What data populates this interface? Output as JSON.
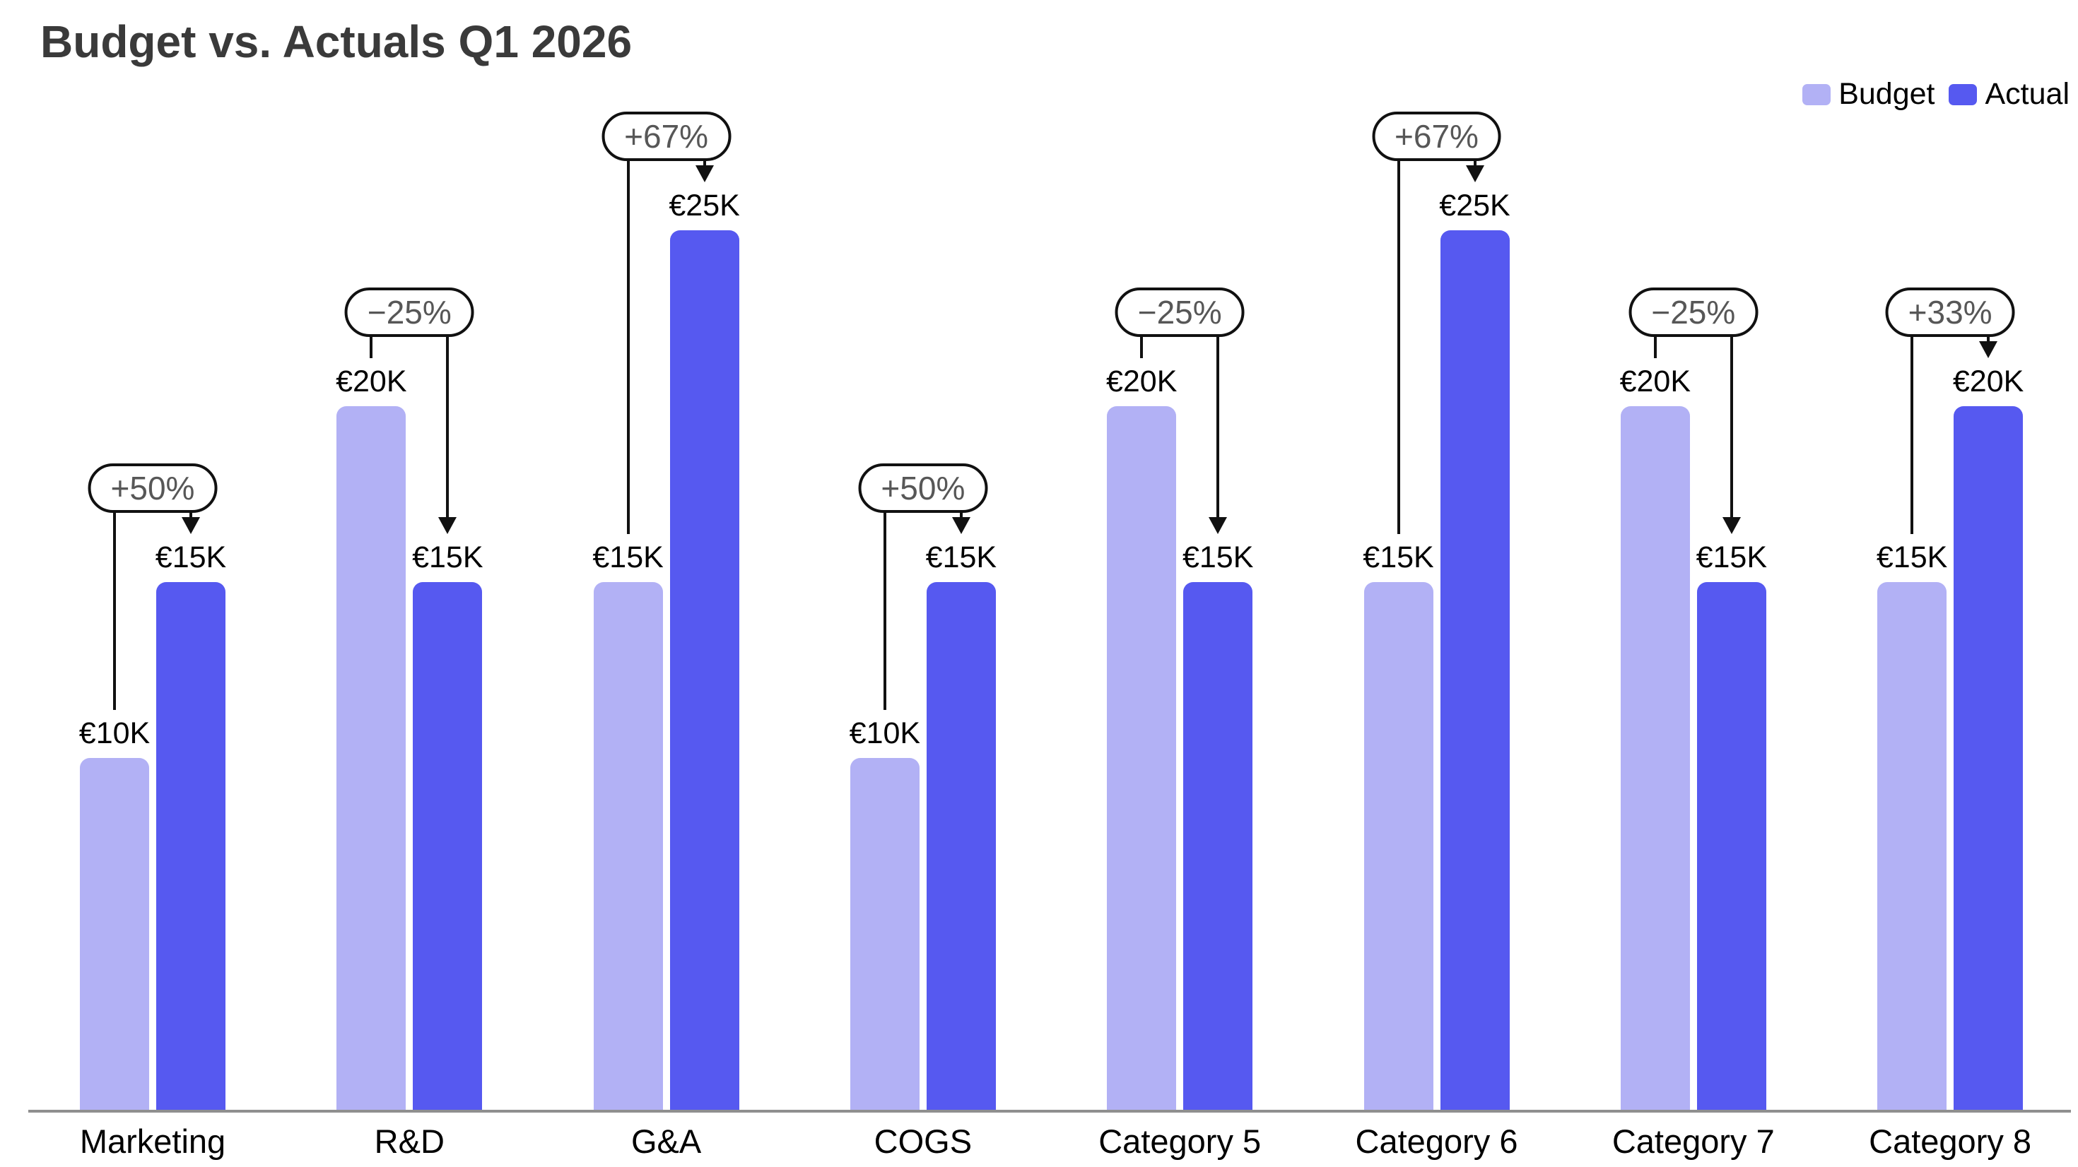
{
  "title": "Budget vs. Actuals Q1 2026",
  "legend": {
    "items": [
      {
        "label": "Budget",
        "color": "#b2b1f5"
      },
      {
        "label": "Actual",
        "color": "#5659f0"
      }
    ]
  },
  "chart_data": {
    "type": "bar",
    "title": "Budget vs. Actuals Q1 2026",
    "categories": [
      "Marketing",
      "R&D",
      "G&A",
      "COGS",
      "Category 5",
      "Category 6",
      "Category 7",
      "Category 8"
    ],
    "series": [
      {
        "name": "Budget",
        "color": "#b2b1f5",
        "values": [
          10000,
          20000,
          15000,
          10000,
          20000,
          15000,
          20000,
          15000
        ],
        "labels": [
          "€10K",
          "€20K",
          "€15K",
          "€10K",
          "€20K",
          "€15K",
          "€20K",
          "€15K"
        ]
      },
      {
        "name": "Actual",
        "color": "#5659f0",
        "values": [
          15000,
          15000,
          25000,
          15000,
          15000,
          25000,
          15000,
          20000
        ],
        "labels": [
          "€15K",
          "€15K",
          "€25K",
          "€15K",
          "€15K",
          "€25K",
          "€15K",
          "€20K"
        ]
      }
    ],
    "annotations": [
      "+50%",
      "−25%",
      "+67%",
      "+50%",
      "−25%",
      "+67%",
      "−25%",
      "+33%"
    ],
    "currency_symbol": "€",
    "xlabel": "",
    "ylabel": "",
    "ylim": [
      0,
      26000
    ],
    "grid": false,
    "y_axis_visible": false,
    "legend_position": "top-right",
    "axis_line_color": "#8f8f8f",
    "annotation_arrow_target": "Actual"
  }
}
